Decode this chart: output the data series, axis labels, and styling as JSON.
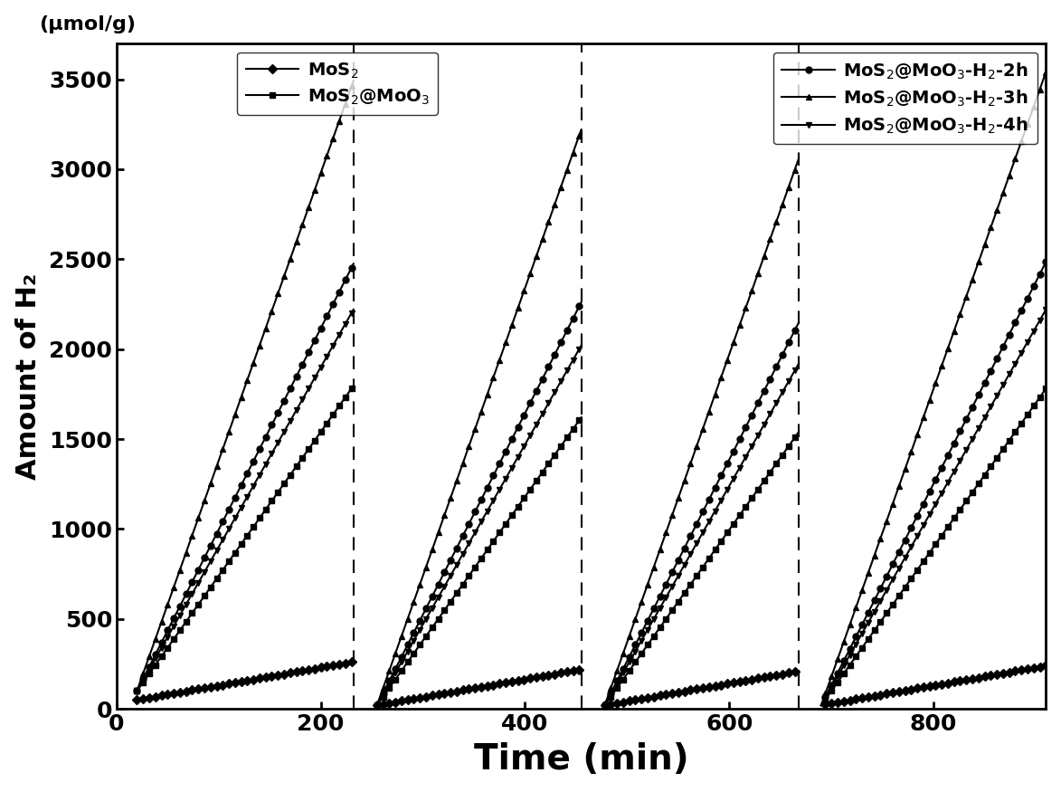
{
  "xlabel": "Time (min)",
  "ylabel": "Amount of H₂",
  "ylabel_unit": "(μmol/g)",
  "ylim": [
    0,
    3700
  ],
  "xlim": [
    0,
    910
  ],
  "yticks": [
    0,
    500,
    1000,
    1500,
    2000,
    2500,
    3000,
    3500
  ],
  "xticks": [
    0,
    200,
    400,
    600,
    800
  ],
  "dashed_lines": [
    232,
    455,
    668
  ],
  "cycles": [
    [
      20,
      232
    ],
    [
      255,
      455
    ],
    [
      478,
      668
    ],
    [
      690,
      910
    ]
  ],
  "series": [
    {
      "label": "MoS$_2$",
      "marker": "D",
      "rate_per_min": 1.0,
      "y_init": 50,
      "color": "#000000",
      "markersize": 5,
      "linewidth": 1.5,
      "markevery": 3
    },
    {
      "label": "MoS$_2$@MoO$_3$",
      "marker": "s",
      "rate_per_min": 8.0,
      "y_init": 100,
      "color": "#000000",
      "markersize": 5,
      "linewidth": 1.5,
      "markevery": 3
    },
    {
      "label": "MoS$_2$@MoO$_3$-H$_2$-2h",
      "marker": "o",
      "rate_per_min": 11.2,
      "y_init": 100,
      "color": "#000000",
      "markersize": 5,
      "linewidth": 1.5,
      "markevery": 3
    },
    {
      "label": "MoS$_2$@MoO$_3$-H$_2$-3h",
      "marker": "^",
      "rate_per_min": 16.0,
      "y_init": 100,
      "color": "#000000",
      "markersize": 5,
      "linewidth": 1.5,
      "markevery": 3
    },
    {
      "label": "MoS$_2$@MoO$_3$-H$_2$-4h",
      "marker": "v",
      "rate_per_min": 10.0,
      "y_init": 100,
      "color": "#000000",
      "markersize": 5,
      "linewidth": 1.5,
      "markevery": 3
    }
  ]
}
